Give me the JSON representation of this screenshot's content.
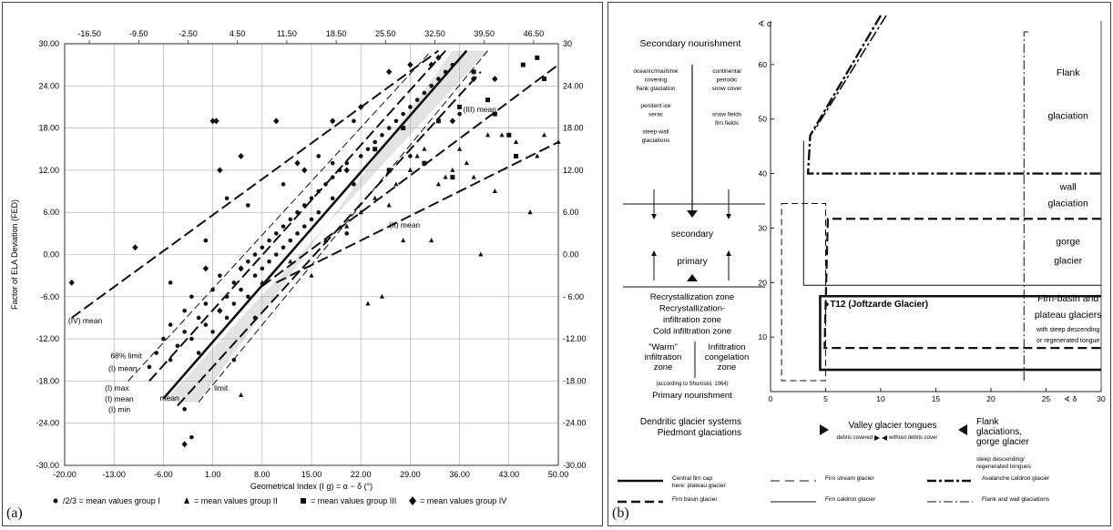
{
  "panel_a": {
    "label": "(a)",
    "chart_data": {
      "type": "scatter",
      "ylabel": "Factor of ELA Deviation (FED)",
      "xlabel": "Geometrical Index (I g) = α − δ (°)",
      "x_ticks": [
        "-20.00",
        "-13.00",
        "-6.00",
        "1.00",
        "8.00",
        "15.00",
        "22.00",
        "29.00",
        "36.00",
        "43.00",
        "50.00"
      ],
      "x_top_ticks": [
        "-16.50",
        "-9.50",
        "-2.50",
        "4.50",
        "11.50",
        "18.50",
        "25.50",
        "32.50",
        "39.50",
        "46.50"
      ],
      "y_ticks": [
        "30.00",
        "24.00",
        "18.00",
        "12.00",
        "6.00",
        "0.00",
        "-6.00",
        "-12.00",
        "-18.00",
        "-24.00",
        "-30.00"
      ],
      "y_right_ticks": [
        "30",
        "24.00",
        "18.00",
        "12.00",
        "6.00",
        "0.00",
        "- 6.00",
        "-12.00",
        "-18.00",
        "-24.00",
        "-30.00"
      ],
      "xlim": [
        -20,
        50
      ],
      "ylim": [
        -30,
        30
      ],
      "grid": true,
      "band_68": [
        [
          -6,
          -21
        ],
        [
          -1,
          -21
        ],
        [
          35,
          29
        ],
        [
          40,
          29
        ]
      ],
      "lines": [
        {
          "name": "(I) mean",
          "style": "solid-bold",
          "points": [
            [
              -6,
              -20.5
            ],
            [
              37,
              29
            ]
          ]
        },
        {
          "name": "68% limit",
          "style": "dash-light",
          "points": [
            [
              -11,
              -18
            ],
            [
              32,
              29
            ]
          ]
        },
        {
          "name": "68% limit",
          "style": "dash-light",
          "points": [
            [
              -1,
              -21
            ],
            [
              40,
              29
            ]
          ]
        },
        {
          "name": "(I) max",
          "style": "dash",
          "points": [
            [
              -8,
              -18
            ],
            [
              34,
              29
            ]
          ]
        },
        {
          "name": "(I) min",
          "style": "dash",
          "points": [
            [
              -4,
              -21.5
            ],
            [
              39,
              26
            ]
          ]
        },
        {
          "name": "(II) mean",
          "style": "dash",
          "points": [
            [
              10,
              -4
            ],
            [
              50,
              16
            ]
          ]
        },
        {
          "name": "(III) mean",
          "style": "dash",
          "points": [
            [
              8,
              -4.5
            ],
            [
              50,
              27
            ]
          ]
        },
        {
          "name": "(IV) mean",
          "style": "dash",
          "points": [
            [
              -19,
              -9
            ],
            [
              33,
              29
            ]
          ]
        }
      ],
      "annotations": [
        {
          "text": "(IV) mean",
          "x": -19.5,
          "y": -9.8
        },
        {
          "text": "68% limit",
          "x": -13.5,
          "y": -14.8
        },
        {
          "text": "(I) mean",
          "x": -13.8,
          "y": -16.6
        },
        {
          "text": "(I) max",
          "x": -14.3,
          "y": -19.4
        },
        {
          "text": "(I) mean",
          "x": -14.3,
          "y": -20.9
        },
        {
          "text": "(I) min",
          "x": -13.8,
          "y": -22.4
        },
        {
          "text": "mean",
          "x": -6.5,
          "y": -20.8
        },
        {
          "text": "limit",
          "x": 1.2,
          "y": -19.4
        },
        {
          "text": "(III) mean",
          "x": 36.5,
          "y": 20.3
        },
        {
          "text": "(II) mean",
          "x": 26,
          "y": 3.8
        }
      ],
      "series": [
        {
          "name": "mean values group I",
          "marker": "dot",
          "points": [
            [
              -8,
              -16
            ],
            [
              -7,
              -14
            ],
            [
              -6,
              -12
            ],
            [
              -5,
              -15
            ],
            [
              -5,
              -10
            ],
            [
              -4,
              -13
            ],
            [
              -3,
              -11
            ],
            [
              -3,
              -8
            ],
            [
              -2,
              -12
            ],
            [
              -2,
              -6
            ],
            [
              -1,
              -9
            ],
            [
              -1,
              -14
            ],
            [
              0,
              -7
            ],
            [
              0,
              -10
            ],
            [
              1,
              -5
            ],
            [
              1,
              -11
            ],
            [
              2,
              -8
            ],
            [
              2,
              -3
            ],
            [
              3,
              -6
            ],
            [
              3,
              -9
            ],
            [
              4,
              -4
            ],
            [
              4,
              -7
            ],
            [
              5,
              -2
            ],
            [
              5,
              -5
            ],
            [
              6,
              -1
            ],
            [
              6,
              -6
            ],
            [
              7,
              0
            ],
            [
              7,
              -3
            ],
            [
              8,
              1
            ],
            [
              8,
              -2
            ],
            [
              9,
              2
            ],
            [
              9,
              -1
            ],
            [
              10,
              3
            ],
            [
              10,
              0
            ],
            [
              11,
              4
            ],
            [
              11,
              1
            ],
            [
              12,
              5
            ],
            [
              12,
              2
            ],
            [
              13,
              6
            ],
            [
              13,
              3
            ],
            [
              14,
              7
            ],
            [
              14,
              4
            ],
            [
              15,
              8
            ],
            [
              15,
              5
            ],
            [
              16,
              9
            ],
            [
              16,
              6
            ],
            [
              17,
              10
            ],
            [
              18,
              11
            ],
            [
              18,
              8
            ],
            [
              19,
              12
            ],
            [
              20,
              13
            ],
            [
              21,
              10
            ],
            [
              22,
              14
            ],
            [
              23,
              15
            ],
            [
              24,
              16
            ],
            [
              25,
              17
            ],
            [
              26,
              18
            ],
            [
              27,
              19
            ],
            [
              28,
              20
            ],
            [
              29,
              21
            ],
            [
              30,
              22
            ],
            [
              31,
              23
            ],
            [
              32,
              24
            ],
            [
              33,
              25
            ],
            [
              34,
              26
            ],
            [
              35,
              27
            ],
            [
              2,
              12
            ],
            [
              3,
              8
            ],
            [
              6,
              7
            ],
            [
              -3,
              -22
            ],
            [
              -2,
              -26
            ],
            [
              11,
              10
            ],
            [
              18,
              13
            ],
            [
              21,
              19
            ],
            [
              16,
              14
            ],
            [
              20,
              3
            ],
            [
              29,
              14
            ],
            [
              36,
              20
            ],
            [
              -5,
              -4
            ],
            [
              0,
              2
            ],
            [
              4,
              -15
            ],
            [
              7,
              -9
            ]
          ]
        },
        {
          "name": "mean values group II",
          "marker": "triangle",
          "points": [
            [
              8,
              -4
            ],
            [
              12,
              -1
            ],
            [
              15,
              -3
            ],
            [
              17,
              2
            ],
            [
              20,
              4
            ],
            [
              22,
              6
            ],
            [
              24,
              8
            ],
            [
              25,
              -6
            ],
            [
              26,
              7
            ],
            [
              27,
              10
            ],
            [
              28,
              2
            ],
            [
              29,
              12
            ],
            [
              30,
              14
            ],
            [
              31,
              15
            ],
            [
              32,
              2
            ],
            [
              33,
              10
            ],
            [
              34,
              11
            ],
            [
              35,
              12
            ],
            [
              36,
              15
            ],
            [
              37,
              13
            ],
            [
              38,
              11
            ],
            [
              40,
              17
            ],
            [
              41,
              9
            ],
            [
              42,
              17
            ],
            [
              44,
              16
            ],
            [
              46,
              6
            ],
            [
              47,
              14
            ],
            [
              48,
              17
            ],
            [
              50,
              16
            ],
            [
              39,
              0
            ],
            [
              5,
              -20
            ],
            [
              23,
              -7
            ]
          ]
        },
        {
          "name": "mean values group III",
          "marker": "square",
          "points": [
            [
              24,
              15
            ],
            [
              26,
              12
            ],
            [
              28,
              18
            ],
            [
              31,
              13
            ],
            [
              33,
              19
            ],
            [
              35,
              11
            ],
            [
              36,
              21
            ],
            [
              38,
              26
            ],
            [
              40,
              22
            ],
            [
              41,
              20
            ],
            [
              43,
              17
            ],
            [
              45,
              27
            ],
            [
              47,
              28
            ],
            [
              48,
              25
            ],
            [
              44,
              14
            ]
          ]
        },
        {
          "name": "mean values group IV",
          "marker": "diamond",
          "points": [
            [
              -19,
              -4
            ],
            [
              -10,
              1
            ],
            [
              0,
              -2
            ],
            [
              1,
              19
            ],
            [
              1.5,
              19
            ],
            [
              2,
              12
            ],
            [
              5,
              14
            ],
            [
              5,
              -2
            ],
            [
              10,
              19
            ],
            [
              13,
              13
            ],
            [
              14,
              12
            ],
            [
              18,
              19
            ],
            [
              20,
              12
            ],
            [
              22,
              21
            ],
            [
              26,
              26
            ],
            [
              29,
              27
            ],
            [
              32,
              27
            ],
            [
              33,
              28
            ],
            [
              35,
              19
            ],
            [
              38,
              25
            ],
            [
              41,
              25
            ],
            [
              -3,
              -27
            ],
            [
              2,
              -8
            ]
          ]
        }
      ],
      "legend": [
        {
          "marker": "dot",
          "text": "/2/3 = mean values group I"
        },
        {
          "marker": "triangle",
          "text": "= mean values group II"
        },
        {
          "marker": "square",
          "text": "= mean values group III"
        },
        {
          "marker": "diamond",
          "text": "= mean values group IV"
        }
      ]
    }
  },
  "panel_b": {
    "label": "(b)",
    "chart_data": {
      "type": "line",
      "y_axis_label": "∢ α",
      "x_axis_label": "∢ δ",
      "x_ticks": [
        "0",
        "5",
        "10",
        "15",
        "20",
        "25",
        "30"
      ],
      "y_ticks": [
        "10",
        "20",
        "30",
        "40",
        "50",
        "60"
      ],
      "xlim": [
        0,
        30
      ],
      "ylim": [
        0,
        68
      ],
      "left_text": {
        "top": "Secondary nourishment",
        "left_col": [
          "oceanic/maritime",
          "covering",
          "flank glaciation",
          "",
          "penitent ice",
          "serac",
          "",
          "steep-wall",
          "glaciations"
        ],
        "right_col": [
          "continental",
          "periodic",
          "snow cover",
          "",
          "",
          "snow fields",
          "firn fields"
        ],
        "secondary": "secondary",
        "primary": "primary",
        "zones": [
          "Recrystallization zone",
          "Recrystallization-",
          "infiltration zone",
          "Cold infiltration zone"
        ],
        "warm": [
          "\"Warm\"",
          "infiltration",
          "zone"
        ],
        "congelation": [
          "Infiltration",
          "congelation",
          "zone"
        ],
        "source": "(according to Shumskii, 1964)",
        "bottom": "Primary nourishment"
      },
      "region_labels": [
        {
          "text": "Flank",
          "x": 27,
          "y": 58
        },
        {
          "text": "glaciation",
          "x": 27,
          "y": 50
        },
        {
          "text": "wall",
          "x": 27,
          "y": 37
        },
        {
          "text": "glaciation",
          "x": 27,
          "y": 34
        },
        {
          "text": "gorge",
          "x": 27,
          "y": 27
        },
        {
          "text": "glacier",
          "x": 27,
          "y": 23.5
        },
        {
          "text": "Firn-basin and",
          "x": 27,
          "y": 16.5
        },
        {
          "text": "plateau glaciers",
          "x": 27,
          "y": 13.5
        },
        {
          "text": "with steep descending",
          "x": 27,
          "y": 11
        },
        {
          "text": "or regenerated tongue",
          "x": 27,
          "y": 9
        }
      ],
      "t12": {
        "text": "T12 (Joftzarde Glacier)",
        "x": 5,
        "y": 15.5
      },
      "bottom_labels": {
        "left": [
          "Dendritic glacier systems",
          "Piedmont glaciations"
        ],
        "middle": "Valley glacier tongues",
        "middle_sub_a": "debris covered",
        "middle_sub_b": "without debris cover",
        "right": [
          "Flank",
          "glaciations,",
          "gorge glacier"
        ],
        "right_sub": [
          "steep descending/",
          "regenerated tongues"
        ]
      },
      "legend": [
        {
          "style": "thick-solid",
          "text": [
            "Central firn cap",
            "here: plateau glacier"
          ]
        },
        {
          "style": "long-dash-thin",
          "text": [
            "Firn stream glacier"
          ]
        },
        {
          "style": "dash-dot-thick",
          "text": [
            "Avalanche caldron glacier"
          ]
        },
        {
          "style": "thick-dash",
          "text": [
            "Firn basin glacier"
          ]
        },
        {
          "style": "thin-solid",
          "text": [
            "Firn caldron glacier"
          ]
        },
        {
          "style": "dash-dot-thin",
          "text": [
            "Flank and wall glaciations"
          ]
        }
      ]
    }
  }
}
